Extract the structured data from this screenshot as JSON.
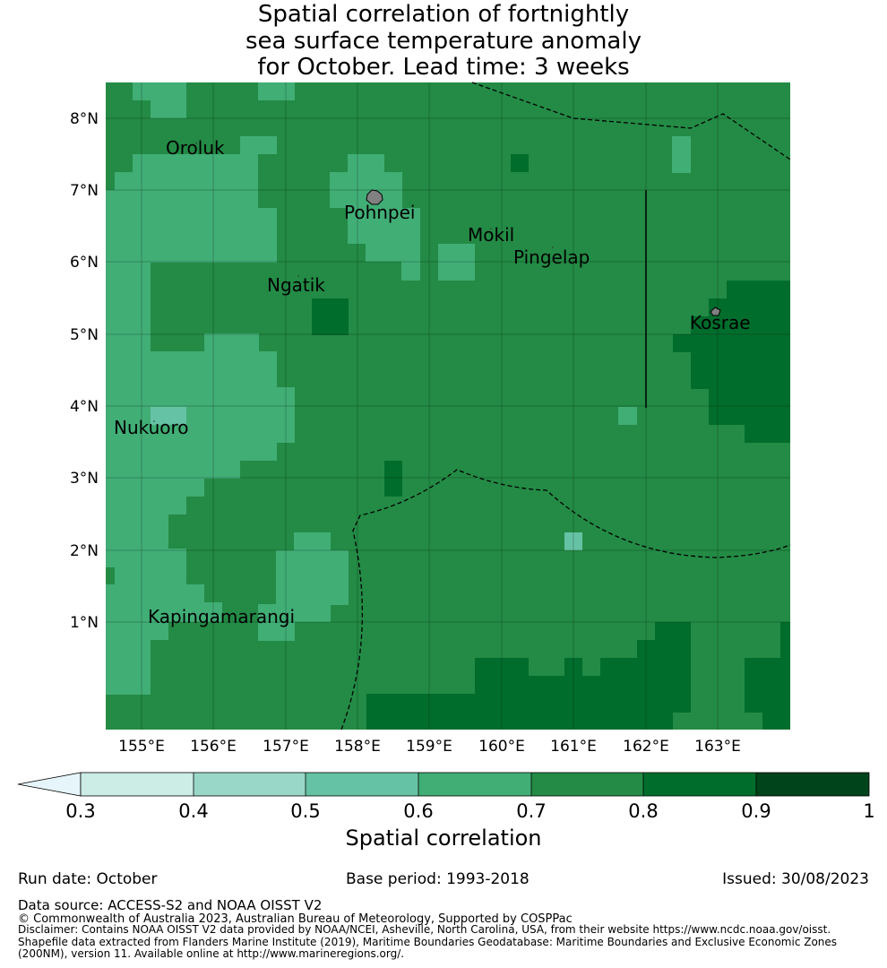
{
  "title": {
    "line1": "Spatial correlation of fortnightly",
    "line2": "sea surface temperature anomaly",
    "line3": "for October. Lead time: 3 weeks"
  },
  "map": {
    "lon_range": [
      154.5,
      164.0
    ],
    "lat_range": [
      -0.25,
      8.75
    ],
    "x_ticks": [
      "155°E",
      "156°E",
      "157°E",
      "158°E",
      "159°E",
      "160°E",
      "161°E",
      "162°E",
      "163°E"
    ],
    "y_ticks": [
      "8°N",
      "7°N",
      "6°N",
      "5°N",
      "4°N",
      "3°N",
      "2°N",
      "1°N"
    ],
    "places": [
      {
        "name": "Oroluk"
      },
      {
        "name": "Pohnpei"
      },
      {
        "name": "Mokil"
      },
      {
        "name": "Pingelap"
      },
      {
        "name": "Ngatik"
      },
      {
        "name": "Kosrae"
      },
      {
        "name": "Nukuoro"
      },
      {
        "name": "Kapingamarangi"
      }
    ]
  },
  "colorbar": {
    "label": "Spatial correlation",
    "ticks": [
      "0.3",
      "0.4",
      "0.5",
      "0.6",
      "0.7",
      "0.8",
      "0.9",
      "1"
    ],
    "colors": [
      "#e5f5f9",
      "#ccece6",
      "#99d8c9",
      "#66c2a4",
      "#41ae76",
      "#238b45",
      "#006d2c",
      "#00441b"
    ]
  },
  "footer": {
    "run_date": "Run date: October",
    "base_period": "Base period: 1993-2018",
    "issued": "Issued: 30/08/2023",
    "data_source": "Data source: ACCESS-S2 and NOAA OISST V2",
    "copyright": "© Commonwealth of Australia 2023, Australian Bureau of Meteorology, Supported by COSPPac",
    "disclaimer_1": "Disclaimer: Contains NOAA OISST V2 data provided by NOAA/NCEI, Asheville, North Carolina, USA, from their website https://www.ncdc.noaa.gov/oisst.",
    "disclaimer_2": "Shapefile data extracted from Flanders Marine Institute (2019), Maritime Boundaries Geodatabase: Maritime Boundaries and Exclusive Economic Zones",
    "disclaimer_3": "(200NM), version 11. Available online at http://www.marineregions.org/."
  }
}
